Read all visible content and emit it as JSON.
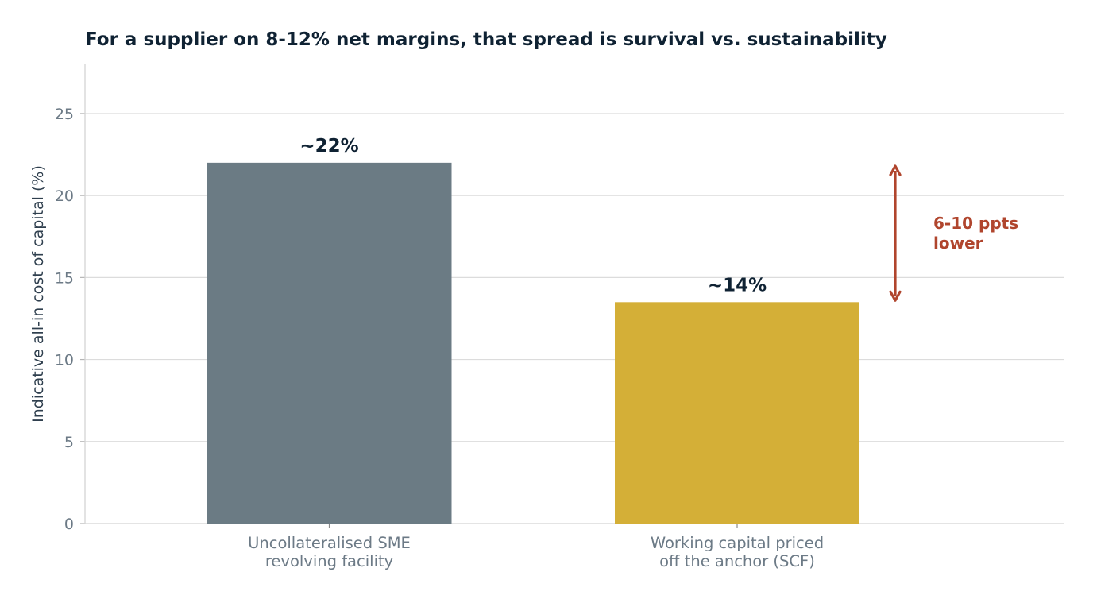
{
  "chart_data": {
    "type": "bar",
    "title": "For a supplier on 8-12% net margins, that spread is survival vs. sustainability",
    "ylabel": "Indicative all-in cost of capital (%)",
    "xlabel": "",
    "ylim": [
      0,
      28
    ],
    "yticks": [
      0,
      5,
      10,
      15,
      20,
      25
    ],
    "grid": true,
    "categories": [
      [
        "Uncollateralised SME",
        "revolving facility"
      ],
      [
        "Working capital priced",
        "off the anchor (SCF)"
      ]
    ],
    "values": [
      22,
      13.5
    ],
    "data_labels": [
      "~22%",
      "~14%"
    ],
    "bar_colors": [
      "#6b7b84",
      "#d4af37"
    ],
    "annotation": {
      "lines": [
        "6-10 ppts",
        "lower"
      ],
      "from": 21.8,
      "to": 13.6,
      "color": "#b0452d"
    }
  }
}
